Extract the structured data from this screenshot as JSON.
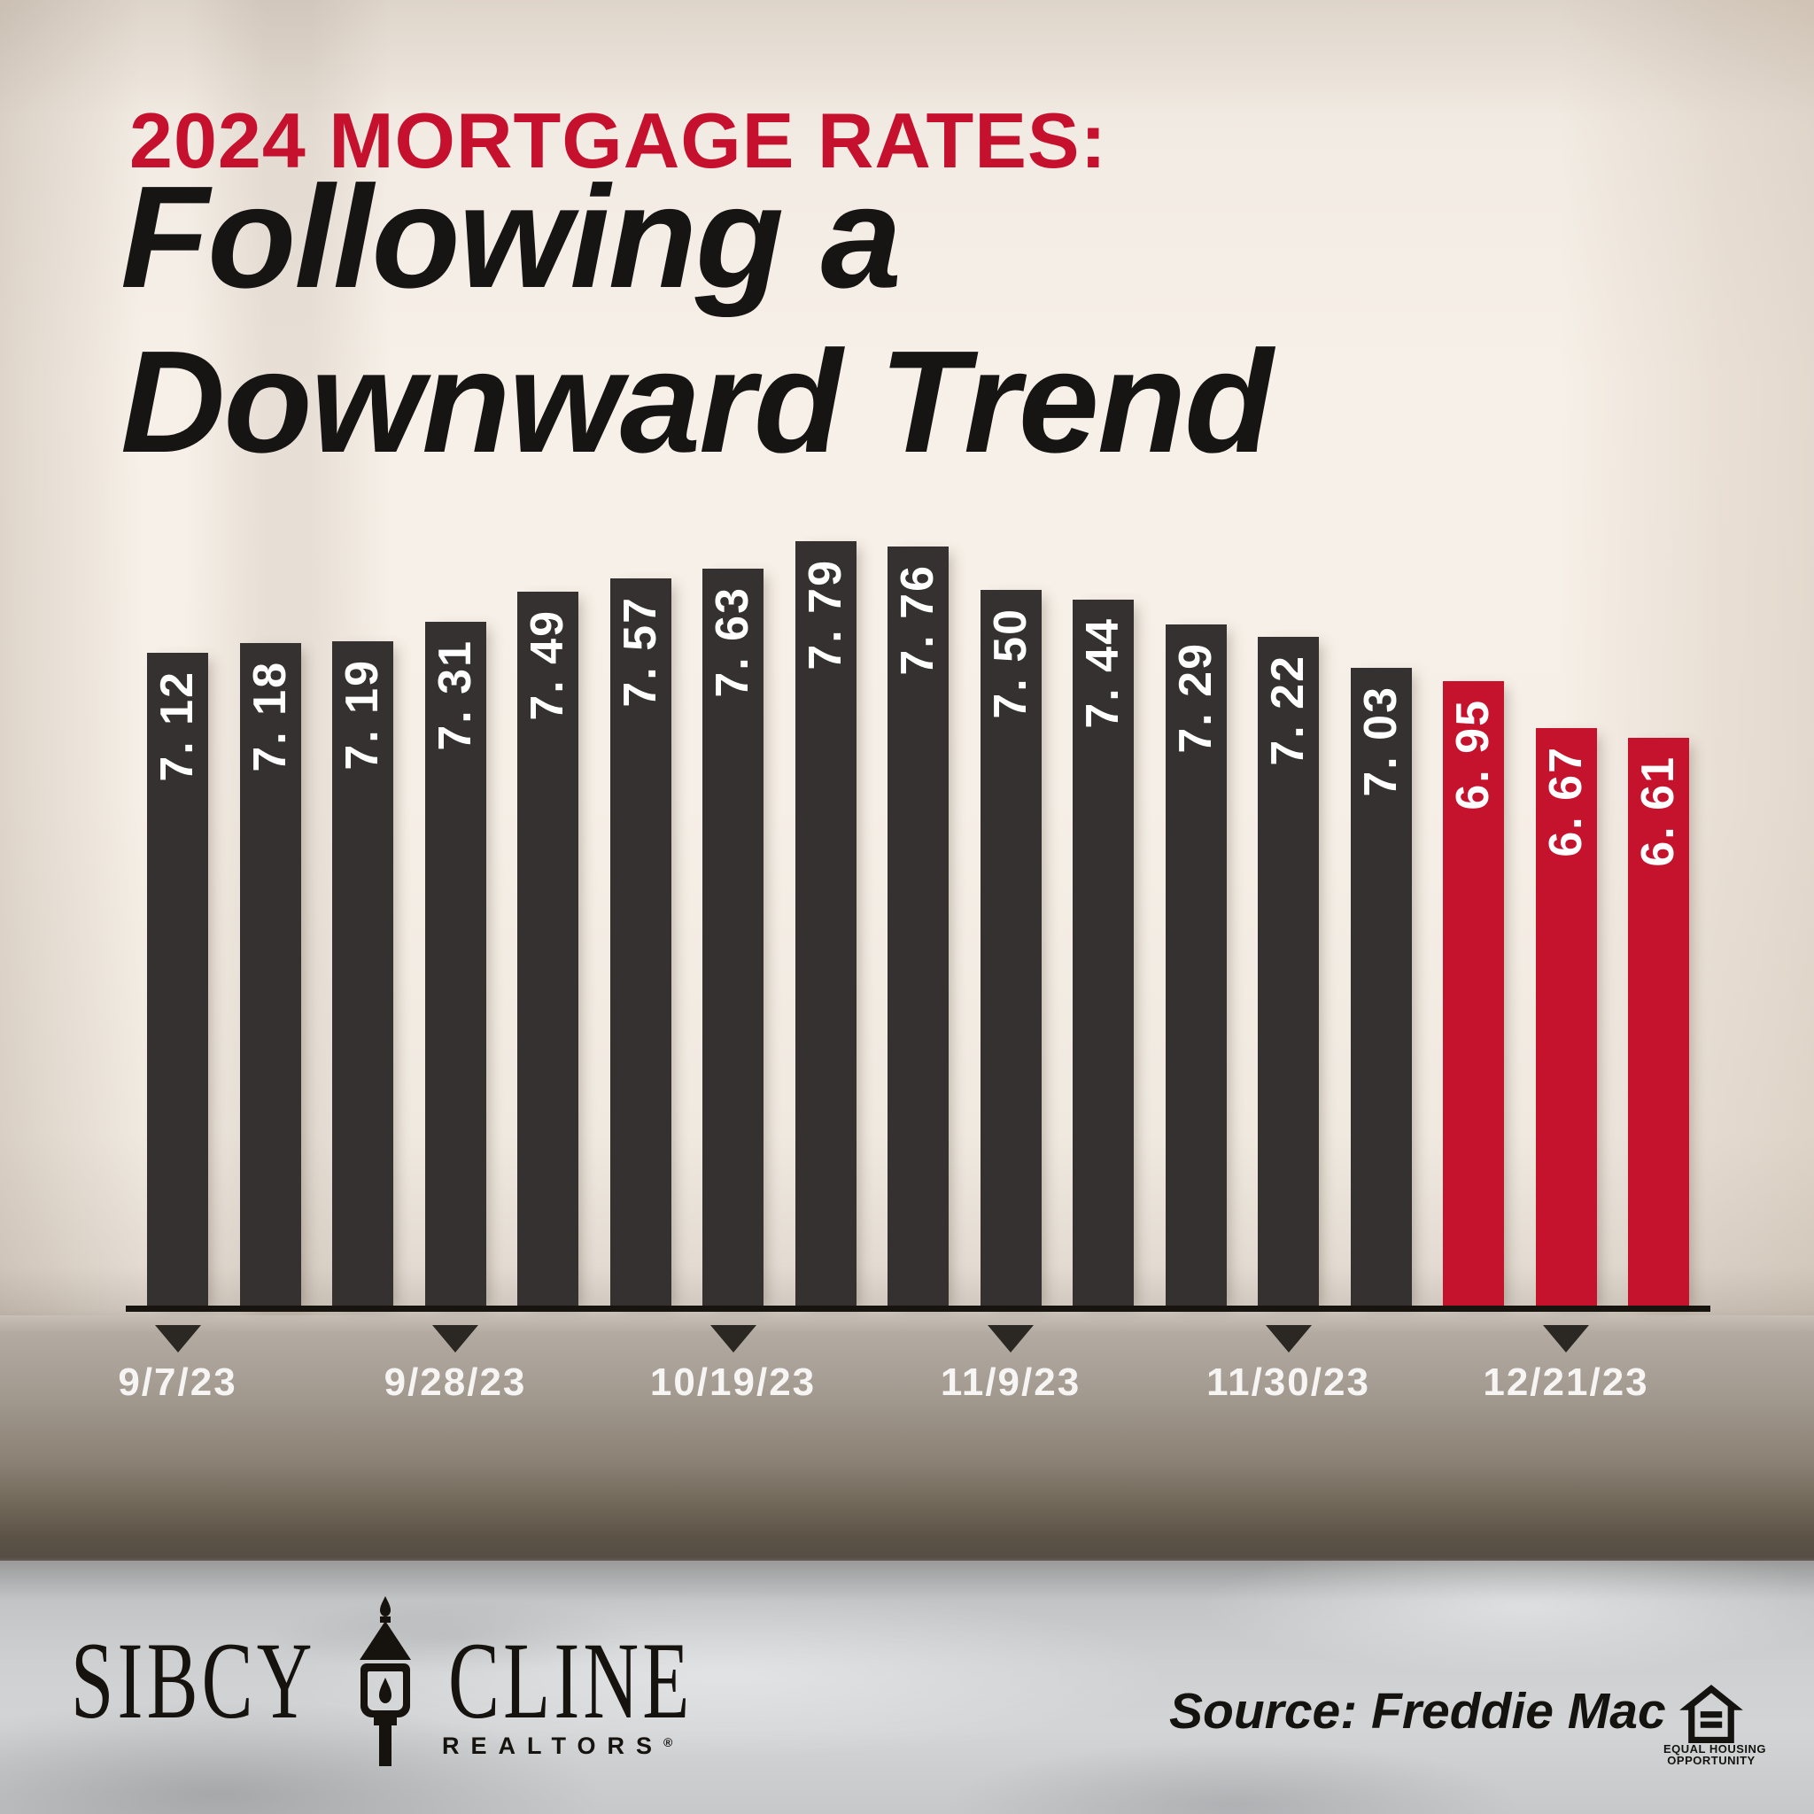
{
  "title": {
    "kicker": "2024 MORTGAGE RATES:",
    "line1": "Following a",
    "line2": "Downward Trend"
  },
  "chart_data": {
    "type": "bar",
    "title": "2024 Mortgage Rates: Following a Downward Trend",
    "xlabel": "",
    "ylabel": "",
    "unit": "percent",
    "grid": false,
    "ylim": [
      6.4,
      8.0
    ],
    "source": "Freddie Mac",
    "points": [
      {
        "value": 7.12,
        "label": "7. 12",
        "highlight": false
      },
      {
        "value": 7.18,
        "label": "7. 18",
        "highlight": false
      },
      {
        "value": 7.19,
        "label": "7. 19",
        "highlight": false
      },
      {
        "value": 7.31,
        "label": "7. 31",
        "highlight": false
      },
      {
        "value": 7.49,
        "label": "7. 49",
        "highlight": false
      },
      {
        "value": 7.57,
        "label": "7. 57",
        "highlight": false
      },
      {
        "value": 7.63,
        "label": "7. 63",
        "highlight": false
      },
      {
        "value": 7.79,
        "label": "7. 79",
        "highlight": false
      },
      {
        "value": 7.76,
        "label": "7. 76",
        "highlight": false
      },
      {
        "value": 7.5,
        "label": "7. 50",
        "highlight": false
      },
      {
        "value": 7.44,
        "label": "7. 44",
        "highlight": false
      },
      {
        "value": 7.29,
        "label": "7. 29",
        "highlight": false
      },
      {
        "value": 7.22,
        "label": "7. 22",
        "highlight": false
      },
      {
        "value": 7.03,
        "label": "7. 03",
        "highlight": false
      },
      {
        "value": 6.95,
        "label": "6. 95",
        "highlight": true
      },
      {
        "value": 6.67,
        "label": "6. 67",
        "highlight": true
      },
      {
        "value": 6.61,
        "label": "6. 61",
        "highlight": true
      }
    ],
    "x_markers": [
      {
        "label": "9/7/23",
        "bar_index": 0
      },
      {
        "label": "9/28/23",
        "bar_index": 3
      },
      {
        "label": "10/19/23",
        "bar_index": 6
      },
      {
        "label": "11/9/23",
        "bar_index": 9
      },
      {
        "label": "11/30/23",
        "bar_index": 12
      },
      {
        "label": "12/21/23",
        "bar_index": 15
      }
    ]
  },
  "colors": {
    "accent": "#C5112D",
    "bar": "#343130",
    "bar_highlight": "#C5122D",
    "axis": "#17130F",
    "value_label": "#FFFFFF",
    "date_label": "#F7F5F3"
  },
  "footer": {
    "brand_word1": "SIBCY",
    "brand_word2": "CLINE",
    "brand_sub": "REALTORS",
    "brand_reg": "®",
    "source_label": "Source: Freddie Mac",
    "eho_line1": "EQUAL HOUSING",
    "eho_line2": "OPPORTUNITY"
  }
}
